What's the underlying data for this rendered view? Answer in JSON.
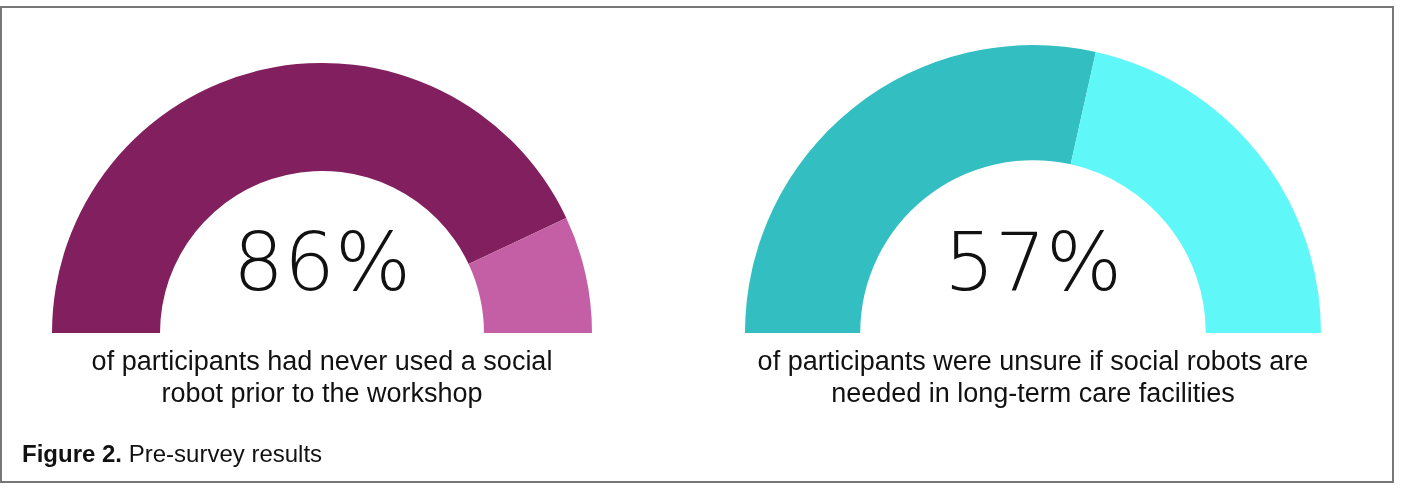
{
  "chart_data": [
    {
      "type": "donut",
      "categories": [
        null,
        null
      ],
      "values": [
        86,
        14
      ],
      "colors": [
        "#82205f",
        "#c55fa5"
      ],
      "annotations": [
        "86%",
        "of participants had never used a social robot prior to the workshop",
        "Figure 2. Pre-survey results"
      ]
    },
    {
      "type": "donut",
      "categories": [
        null,
        null
      ],
      "values": [
        57,
        43
      ],
      "colors": [
        "#33bfc2",
        "#60f7f9"
      ],
      "annotations": [
        "57%",
        "of participants were unsure if social robots are needed in long-term care facilities"
      ]
    }
  ]
}
